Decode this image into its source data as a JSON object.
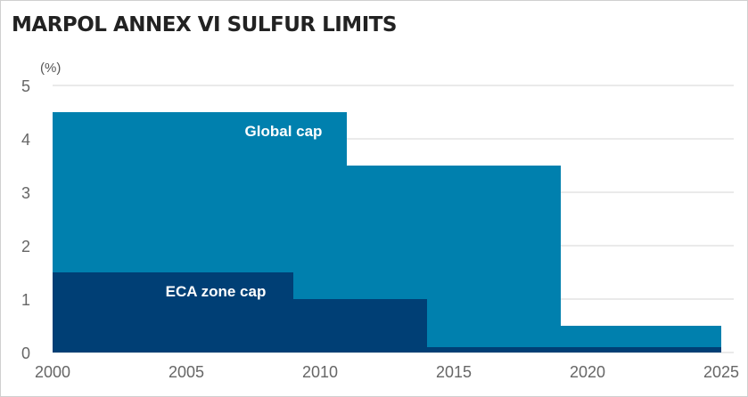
{
  "chart_data": {
    "type": "area",
    "title": "MARPOL ANNEX VI SULFUR LIMITS",
    "ylabel": "(%)",
    "xlim": [
      2000,
      2025
    ],
    "ylim": [
      0,
      5
    ],
    "xticks": [
      2000,
      2005,
      2010,
      2015,
      2020,
      2025
    ],
    "yticks": [
      0,
      1,
      2,
      3,
      4,
      5
    ],
    "grid": "horizontal",
    "series": [
      {
        "name": "Global cap",
        "color": "#0080ae",
        "steps": [
          {
            "from": 2000,
            "to": 2011,
            "value": 4.5
          },
          {
            "from": 2011,
            "to": 2019,
            "value": 3.5
          },
          {
            "from": 2019,
            "to": 2025,
            "value": 0.5
          }
        ]
      },
      {
        "name": "ECA zone cap",
        "color": "#003f75",
        "steps": [
          {
            "from": 2000,
            "to": 2009,
            "value": 1.5
          },
          {
            "from": 2009,
            "to": 2014,
            "value": 1.0
          },
          {
            "from": 2014,
            "to": 2025,
            "value": 0.1
          }
        ]
      }
    ]
  }
}
